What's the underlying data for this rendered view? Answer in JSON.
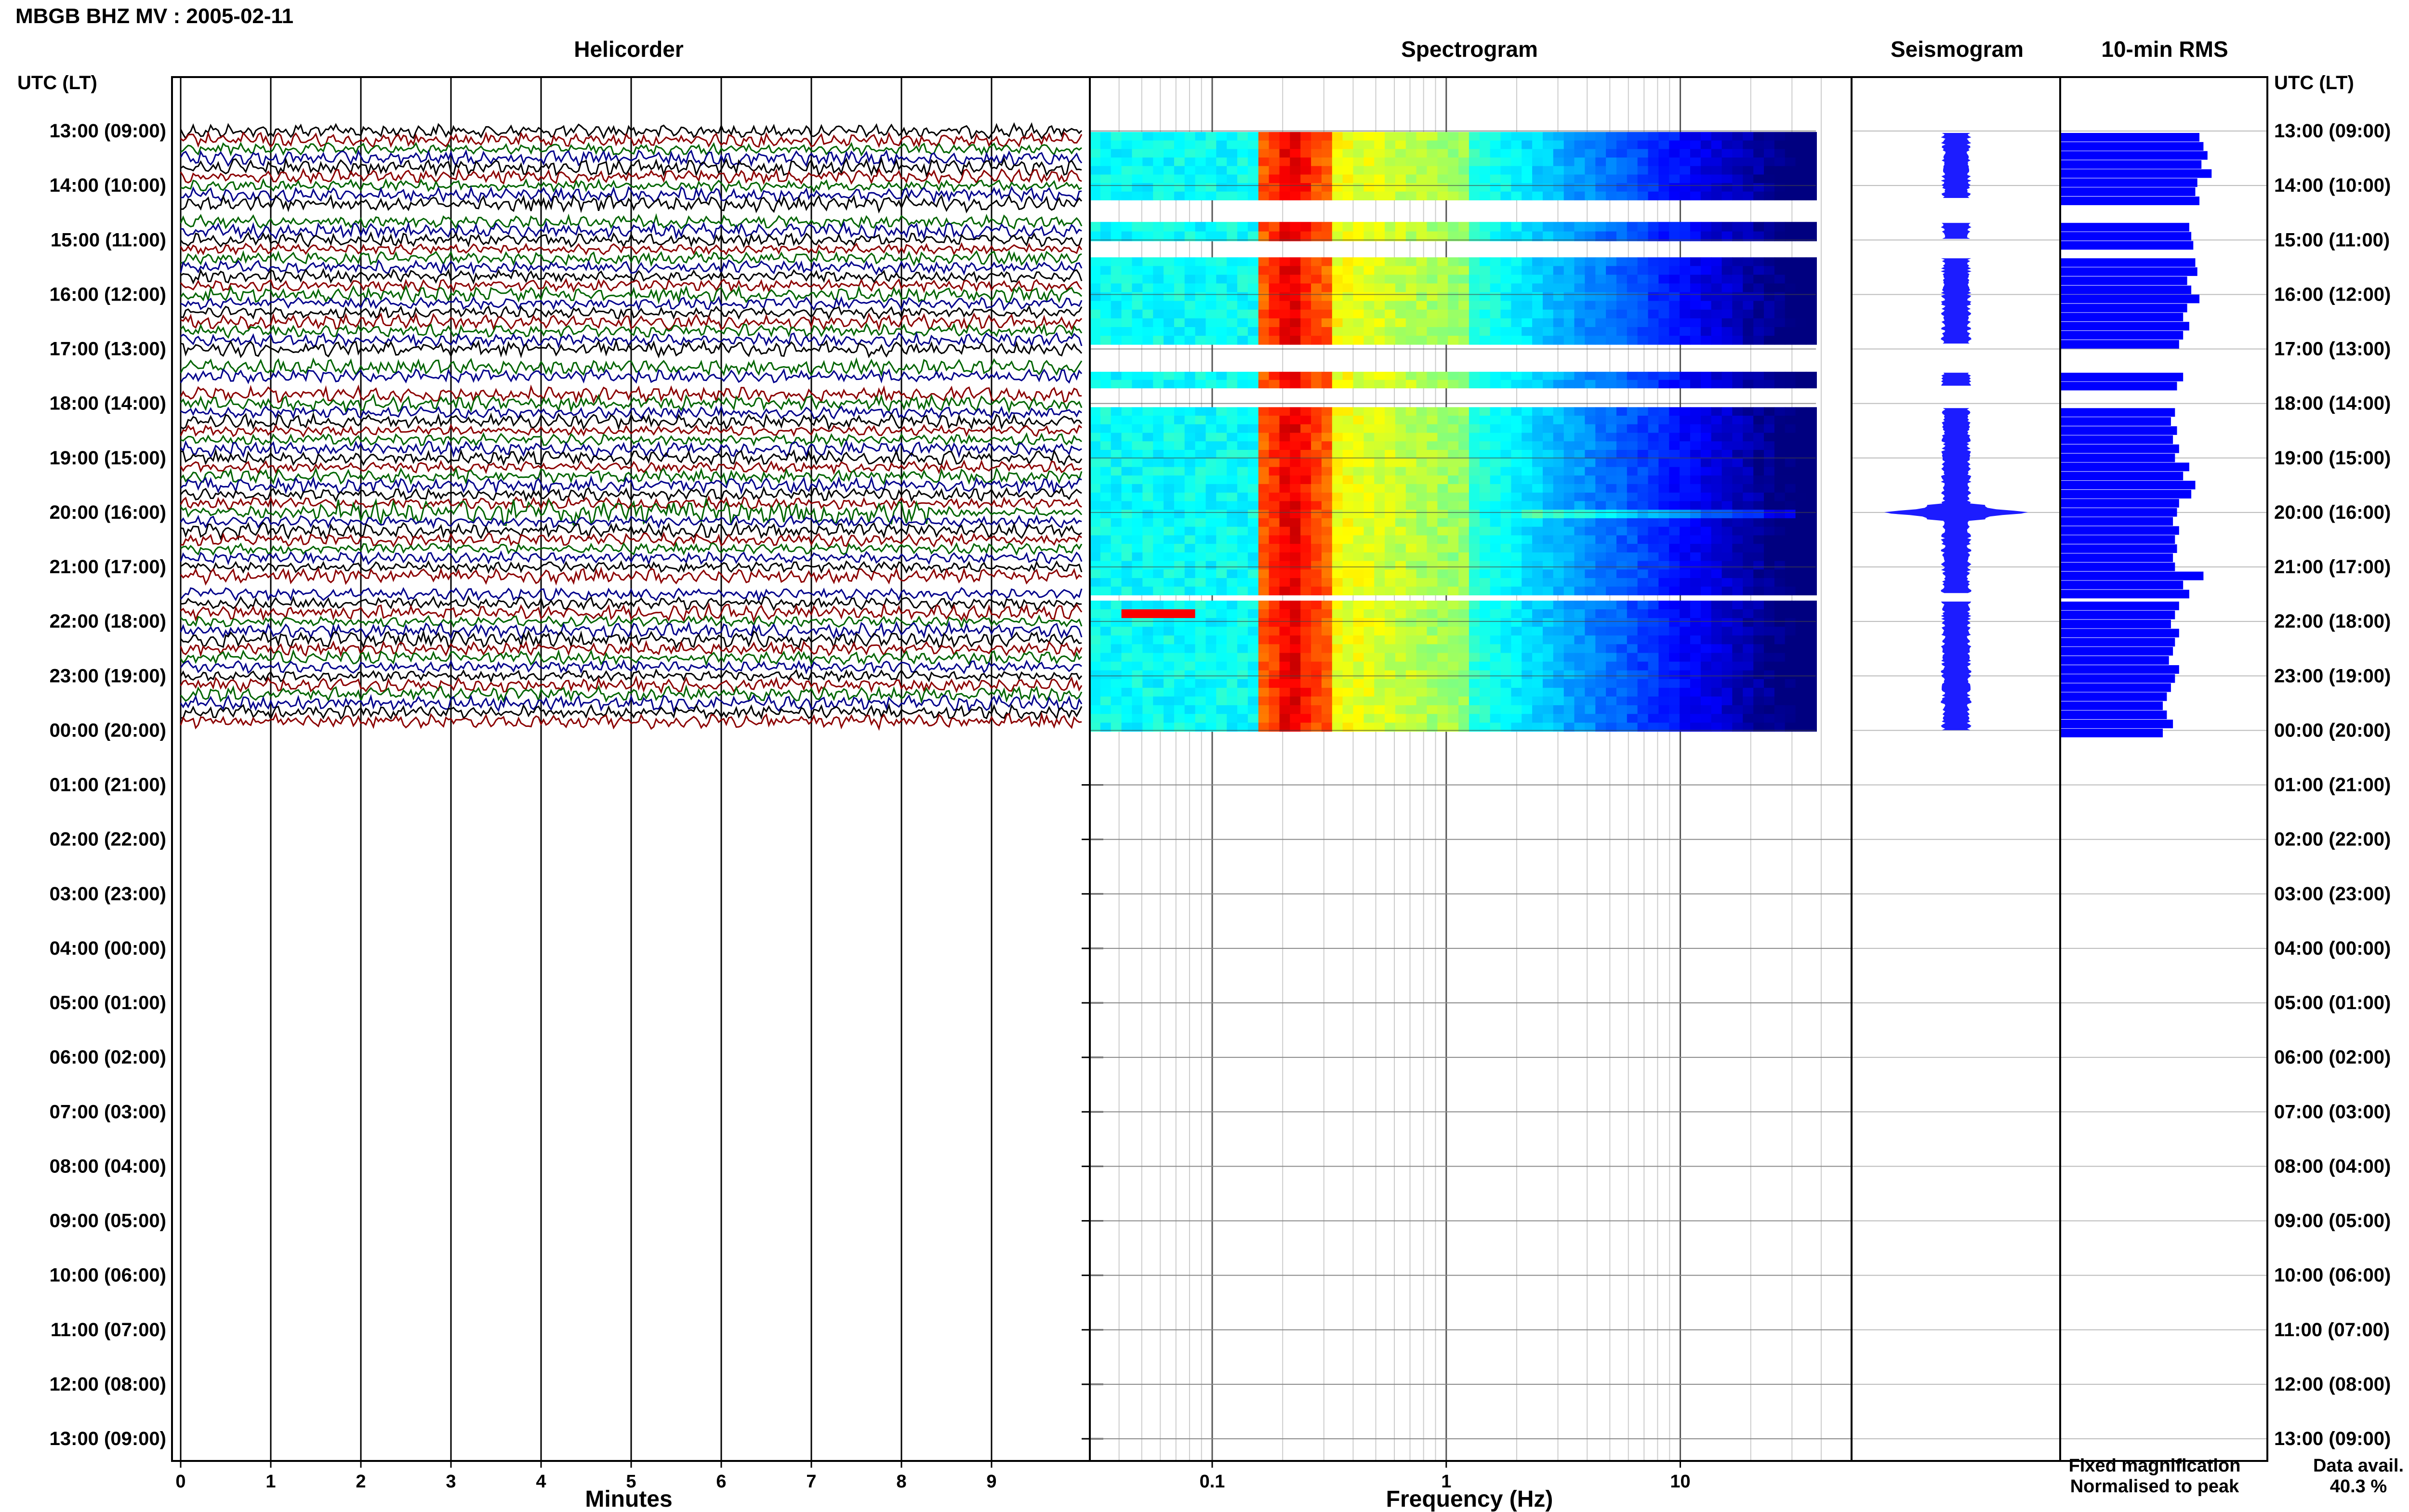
{
  "header": {
    "title": "MBGB BHZ MV : 2005-02-11",
    "panel_helicorder": "Helicorder",
    "panel_spectrogram": "Spectrogram",
    "panel_seismogram": "Seismogram",
    "panel_rms": "10-min RMS",
    "axis_label_left": "UTC (LT)",
    "axis_label_right": "UTC (LT)"
  },
  "footer": {
    "xlabel_minutes": "Minutes",
    "xlabel_frequency": "Frequency (Hz)",
    "legend_fixed": "Fixed magnification",
    "legend_normalised": "Normalised to peak",
    "data_avail_label": "Data avail.",
    "data_avail_value": "40.3 %"
  },
  "colors": {
    "fixed": "#1a1aff",
    "normalised": "#ff0000",
    "trace_cycle": [
      "#000000",
      "#8b0000",
      "#006400",
      "#00008b"
    ],
    "rms_bar": "#0000ff",
    "seis_fill": "#1c1cff"
  },
  "chart_data": {
    "type": "multi-panel seismic day plot",
    "hour_labels": [
      "13:00 (09:00)",
      "14:00 (10:00)",
      "15:00 (11:00)",
      "16:00 (12:00)",
      "17:00 (13:00)",
      "18:00 (14:00)",
      "19:00 (15:00)",
      "20:00 (16:00)",
      "21:00 (17:00)",
      "22:00 (18:00)",
      "23:00 (19:00)",
      "00:00 (20:00)",
      "01:00 (21:00)",
      "02:00 (22:00)",
      "03:00 (23:00)",
      "04:00 (00:00)",
      "05:00 (01:00)",
      "06:00 (02:00)",
      "07:00 (03:00)",
      "08:00 (04:00)",
      "09:00 (05:00)",
      "10:00 (06:00)",
      "11:00 (07:00)",
      "12:00 (08:00)",
      "13:00 (09:00)"
    ],
    "helicorder": {
      "x_ticks": [
        "0",
        "1",
        "2",
        "3",
        "4",
        "5",
        "6",
        "7",
        "8",
        "9"
      ],
      "xlim": [
        0,
        10
      ],
      "rows_per_hour": 6,
      "gaps_hours": [
        [
          13.0,
          13.0
        ],
        [
          14.25,
          14.25
        ],
        [
          14.5,
          14.75
        ],
        [
          16.25,
          16.75
        ],
        [
          17.0,
          17.25
        ],
        [
          20.25,
          20.25
        ]
      ]
    },
    "spectrogram": {
      "x_scale": "log",
      "xlim": [
        0.03,
        40
      ],
      "x_ticks": [
        0.1,
        1,
        10
      ],
      "x_tick_labels": [
        "0.1",
        "1",
        "10"
      ],
      "data_blocks_hours": [
        [
          0.0,
          1.25
        ],
        [
          1.65,
          2.0
        ],
        [
          2.3,
          3.9
        ],
        [
          4.4,
          4.7
        ],
        [
          5.05,
          8.5
        ],
        [
          8.6,
          11.0
        ]
      ],
      "event_hour": 7.0,
      "event_hour_2": 8.8
    },
    "seismogram": {
      "event_hour": 7.0
    },
    "rms": {
      "xlim": [
        0,
        1
      ],
      "values": [
        0.68,
        0.7,
        0.72,
        0.69,
        0.74,
        0.67,
        0.66,
        0.68,
        0.63,
        0.64,
        0.65,
        0.66,
        0.67,
        0.62,
        0.64,
        0.68,
        0.62,
        0.6,
        0.63,
        0.6,
        0.58,
        0.6,
        0.57,
        0.56,
        0.54,
        0.57,
        0.55,
        0.58,
        0.56,
        0.63,
        0.6,
        0.66,
        0.64,
        0.58,
        0.57,
        0.55,
        0.58,
        0.56,
        0.57,
        0.55,
        0.56,
        0.7,
        0.6,
        0.63,
        0.58,
        0.56,
        0.54,
        0.58,
        0.56,
        0.55,
        0.53,
        0.58,
        0.56,
        0.54,
        0.52,
        0.5,
        0.52,
        0.55,
        0.5,
        0.48,
        0.5,
        0.52,
        0.48,
        0.5,
        0.47,
        0.46
      ]
    }
  }
}
